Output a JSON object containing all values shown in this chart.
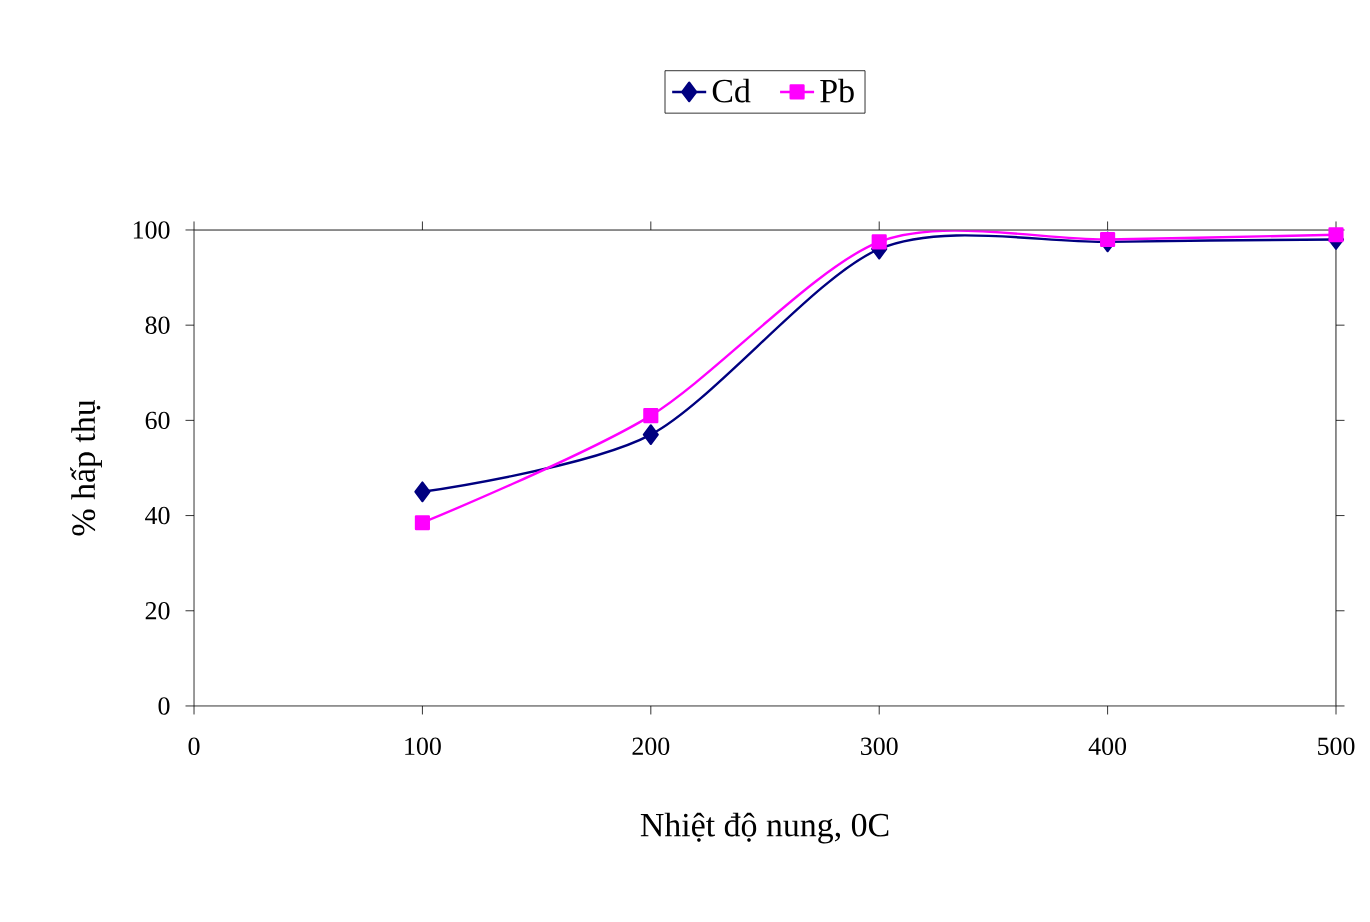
{
  "chart_data": {
    "type": "line",
    "xlabel": "Nhiệt độ nung, 0C",
    "ylabel": "% hấp thụ",
    "x": [
      100,
      200,
      300,
      400,
      500
    ],
    "series": [
      {
        "name": "Cd",
        "color": "#000080",
        "marker": "diamond",
        "values": [
          45,
          57,
          96,
          97.5,
          98
        ]
      },
      {
        "name": "Pb",
        "color": "#ff00ff",
        "marker": "square",
        "values": [
          38.5,
          61,
          97.5,
          98,
          99
        ]
      }
    ],
    "xlim": [
      0,
      500
    ],
    "ylim": [
      0,
      100
    ],
    "xticks": [
      0,
      100,
      200,
      300,
      400,
      500
    ],
    "yticks": [
      0,
      20,
      40,
      60,
      80,
      100
    ],
    "legend": "top",
    "grid": false,
    "line_style": "solid"
  }
}
